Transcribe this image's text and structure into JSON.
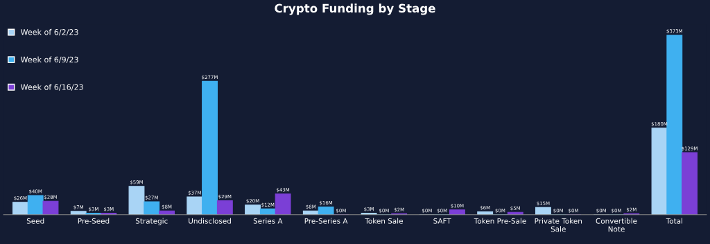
{
  "chart_data": {
    "type": "bar",
    "title": "Crypto Funding by Stage",
    "categories": [
      "Seed",
      "Pre-Seed",
      "Strategic",
      "Undisclosed",
      "Series A",
      "Pre-Series A",
      "Token Sale",
      "SAFT",
      "Token Pre-Sale",
      "Private Token\nSale",
      "Convertible\nNote",
      "Total"
    ],
    "series": [
      {
        "name": "Week of 6/2/23",
        "color": "#a9d4f5",
        "values": [
          26,
          7,
          59,
          37,
          20,
          8,
          3,
          0,
          6,
          15,
          0,
          180
        ],
        "value_labels": [
          "$26M",
          "$7M",
          "$59M",
          "$37M",
          "$20M",
          "$8M",
          "$3M",
          "$0M",
          "$6M",
          "$15M",
          "$0M",
          "$180M"
        ]
      },
      {
        "name": "Week of 6/9/23",
        "color": "#3fb0f0",
        "values": [
          40,
          3,
          27,
          277,
          12,
          16,
          0,
          0,
          0,
          0,
          0,
          373
        ],
        "value_labels": [
          "$40M",
          "$3M",
          "$27M",
          "$277M",
          "$12M",
          "$16M",
          "$0M",
          "$0M",
          "$0M",
          "$0M",
          "$0M",
          "$373M"
        ]
      },
      {
        "name": "Week of 6/16/23",
        "color": "#7b3fd6",
        "values": [
          28,
          3,
          8,
          29,
          43,
          0,
          2,
          10,
          5,
          0,
          2,
          129
        ],
        "value_labels": [
          "$28M",
          "$3M",
          "$8M",
          "$29M",
          "$43M",
          "$0M",
          "$2M",
          "$10M",
          "$5M",
          "$0M",
          "$2M",
          "$129M"
        ]
      }
    ],
    "legend": "top left",
    "grid": false
  }
}
